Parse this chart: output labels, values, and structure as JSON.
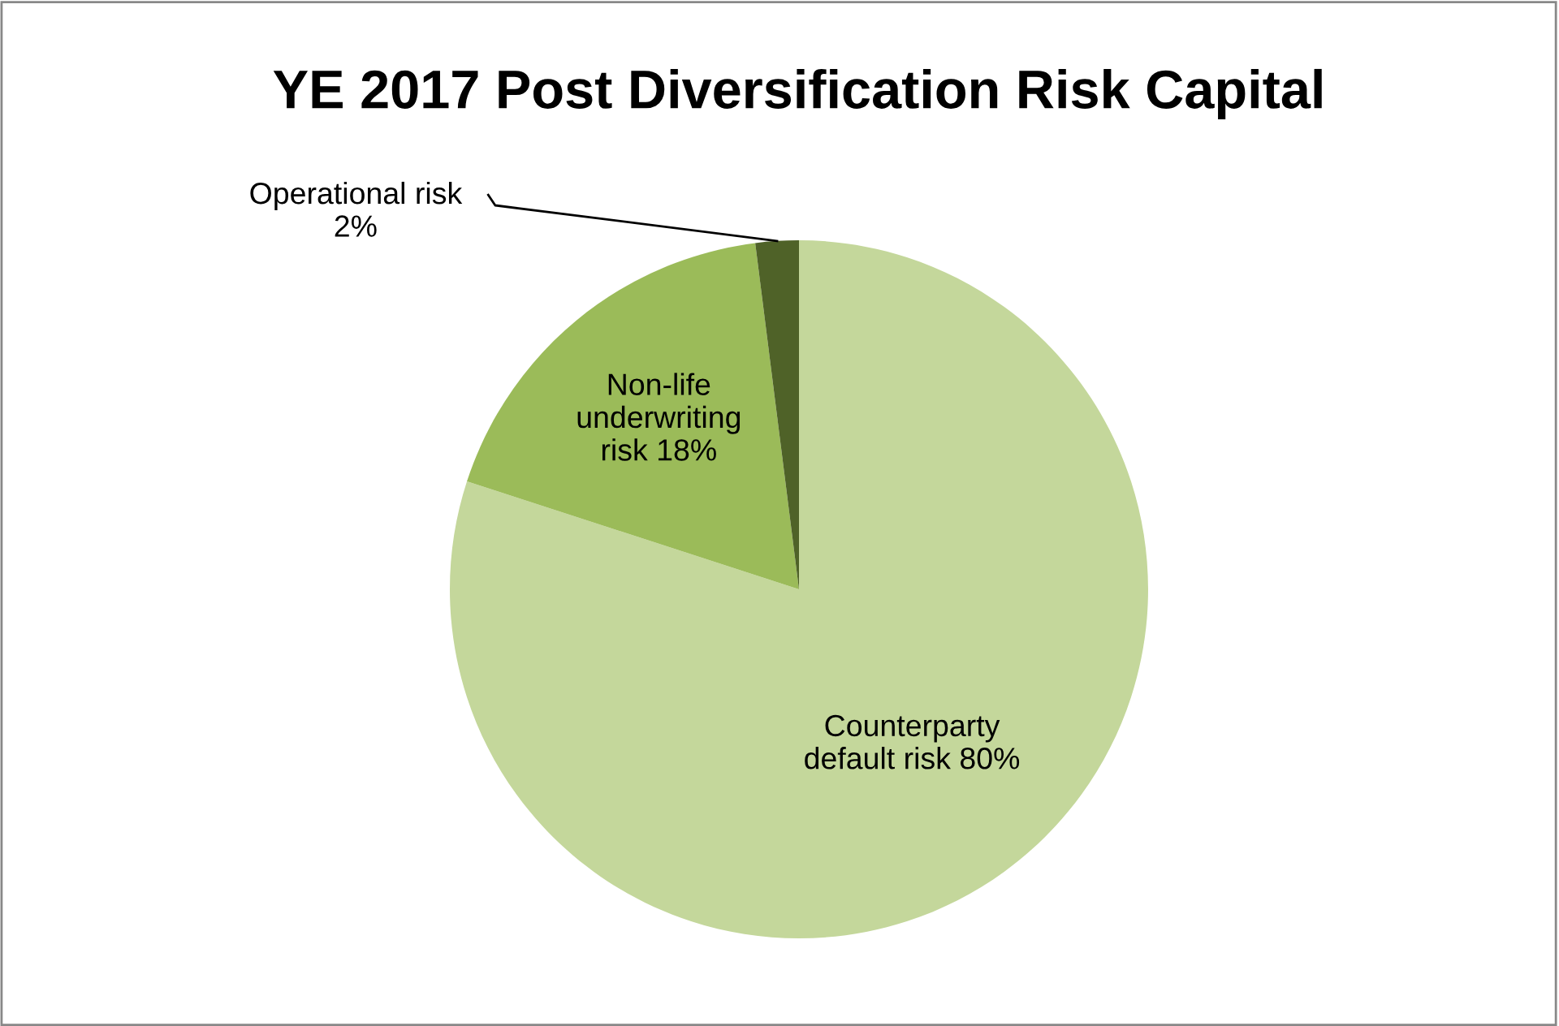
{
  "chart_data": {
    "type": "pie",
    "title": "YE 2017 Post Diversification Risk Capital",
    "categories": [
      "Counterparty default risk",
      "Non-life underwriting risk",
      "Operational risk"
    ],
    "values": [
      80,
      18,
      2
    ],
    "value_labels": [
      "80%",
      "18%",
      "2%"
    ],
    "colors": [
      "#c4d79b",
      "#9bbb59",
      "#4f6228"
    ],
    "legend": false
  }
}
